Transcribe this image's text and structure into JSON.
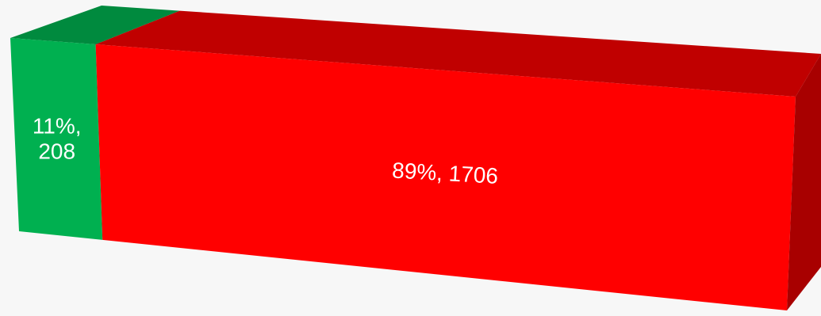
{
  "chart_data": {
    "type": "bar",
    "orientation": "horizontal",
    "stacked": "100%",
    "style": "3d",
    "title": "",
    "xlabel": "",
    "ylabel": "",
    "grid": false,
    "legend": "none",
    "series": [
      {
        "values": [
          208
        ],
        "percent": 11,
        "data_label": "11%,\n208",
        "color": "#00b050",
        "top_color": "#008a3e",
        "side_color": "#008a3e"
      },
      {
        "values": [
          1706
        ],
        "percent": 89,
        "data_label": "89%, 1706",
        "color": "#ff0000",
        "top_color": "#c00000",
        "side_color": "#a80000"
      }
    ]
  }
}
